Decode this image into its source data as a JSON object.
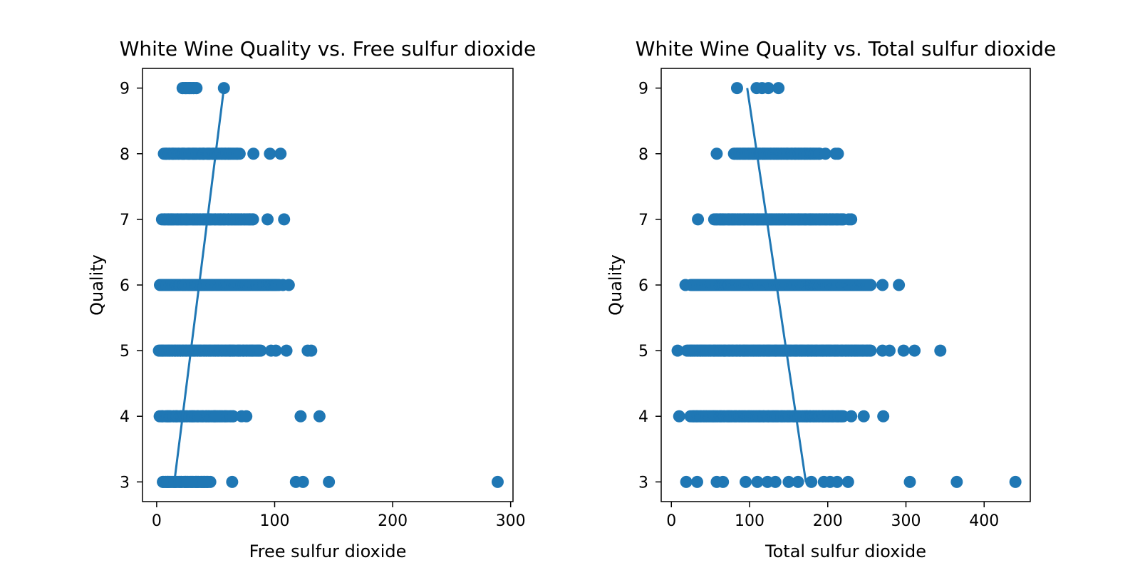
{
  "chart_data": [
    {
      "type": "scatter",
      "title": "White Wine Quality vs. Free sulfur dioxide",
      "xlabel": "Free sulfur dioxide",
      "ylabel": "Quality",
      "xlim": [
        -12,
        302
      ],
      "ylim": [
        2.7,
        9.3
      ],
      "xticks": [
        0,
        100,
        200,
        300
      ],
      "yticks": [
        3,
        4,
        5,
        6,
        7,
        8,
        9
      ],
      "grid": false,
      "color": "#1f77b4",
      "fit_line": {
        "x": [
          15,
          57
        ],
        "y": [
          3,
          9
        ]
      },
      "bands": [
        {
          "y": 3,
          "min": 5,
          "max": 45
        },
        {
          "y": 4,
          "min": 3,
          "max": 65
        },
        {
          "y": 5,
          "min": 2,
          "max": 88
        },
        {
          "y": 6,
          "min": 3,
          "max": 103
        },
        {
          "y": 7,
          "min": 5,
          "max": 82
        },
        {
          "y": 8,
          "min": 6,
          "max": 70
        },
        {
          "y": 9,
          "min": 22,
          "max": 34
        }
      ],
      "points": [
        [
          9,
          3
        ],
        [
          15,
          3
        ],
        [
          26,
          3
        ],
        [
          33,
          3
        ],
        [
          40,
          3
        ],
        [
          64,
          3
        ],
        [
          118,
          3
        ],
        [
          124,
          3
        ],
        [
          146,
          3
        ],
        [
          289,
          3
        ],
        [
          50,
          4
        ],
        [
          72,
          4
        ],
        [
          76,
          4
        ],
        [
          122,
          4
        ],
        [
          138,
          4
        ],
        [
          97,
          5
        ],
        [
          101,
          5
        ],
        [
          110,
          5
        ],
        [
          128,
          5
        ],
        [
          131,
          5
        ],
        [
          107,
          6
        ],
        [
          112,
          6
        ],
        [
          94,
          7
        ],
        [
          108,
          7
        ],
        [
          82,
          8
        ],
        [
          96,
          8
        ],
        [
          105,
          8
        ],
        [
          22,
          9
        ],
        [
          25,
          9
        ],
        [
          28,
          9
        ],
        [
          31,
          9
        ],
        [
          57,
          9
        ]
      ]
    },
    {
      "type": "scatter",
      "title": "White Wine Quality vs. Total sulfur dioxide",
      "xlabel": "Total sulfur dioxide",
      "ylabel": "Quality",
      "xlim": [
        -13,
        459
      ],
      "ylim": [
        2.7,
        9.3
      ],
      "xticks": [
        0,
        100,
        200,
        300,
        400
      ],
      "yticks": [
        3,
        4,
        5,
        6,
        7,
        8,
        9
      ],
      "grid": false,
      "color": "#1f77b4",
      "fit_line": {
        "x": [
          97,
          172
        ],
        "y": [
          9,
          3
        ]
      },
      "bands": [
        {
          "y": 4,
          "min": 25,
          "max": 220
        },
        {
          "y": 5,
          "min": 22,
          "max": 255
        },
        {
          "y": 6,
          "min": 25,
          "max": 255
        },
        {
          "y": 7,
          "min": 55,
          "max": 220
        },
        {
          "y": 8,
          "min": 80,
          "max": 190
        }
      ],
      "points": [
        [
          19,
          3
        ],
        [
          33,
          3
        ],
        [
          58,
          3
        ],
        [
          66,
          3
        ],
        [
          95,
          3
        ],
        [
          110,
          3
        ],
        [
          123,
          3
        ],
        [
          133,
          3
        ],
        [
          150,
          3
        ],
        [
          162,
          3
        ],
        [
          179,
          3
        ],
        [
          195,
          3
        ],
        [
          203,
          3
        ],
        [
          212,
          3
        ],
        [
          226,
          3
        ],
        [
          305,
          3
        ],
        [
          365,
          3
        ],
        [
          440,
          3
        ],
        [
          10,
          4
        ],
        [
          230,
          4
        ],
        [
          246,
          4
        ],
        [
          271,
          4
        ],
        [
          8,
          5
        ],
        [
          20,
          5
        ],
        [
          270,
          5
        ],
        [
          279,
          5
        ],
        [
          297,
          5
        ],
        [
          311,
          5
        ],
        [
          344,
          5
        ],
        [
          18,
          6
        ],
        [
          270,
          6
        ],
        [
          291,
          6
        ],
        [
          34,
          7
        ],
        [
          230,
          7
        ],
        [
          227,
          7
        ],
        [
          58,
          8
        ],
        [
          197,
          8
        ],
        [
          210,
          8
        ],
        [
          213,
          8
        ],
        [
          84,
          9
        ],
        [
          109,
          9
        ],
        [
          116,
          9
        ],
        [
          124,
          9
        ],
        [
          137,
          9
        ]
      ]
    }
  ]
}
